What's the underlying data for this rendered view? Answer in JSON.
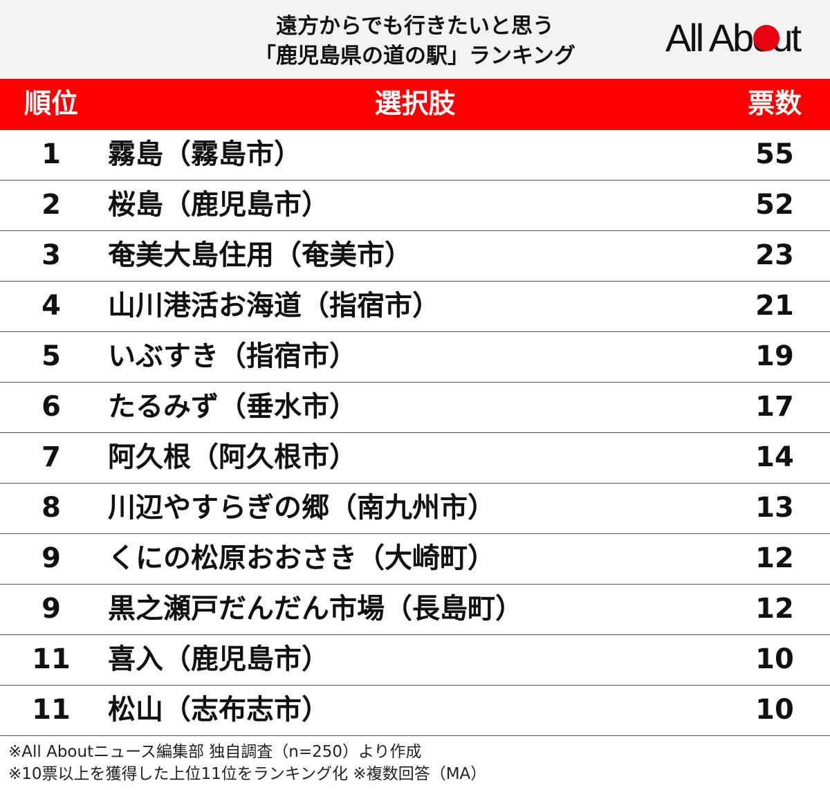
{
  "header": {
    "title_line1": "遠方からでも行きたいと思う",
    "title_line2": "「鹿児島県の道の駅」ランキング",
    "logo_text": "All About",
    "logo_dot_color": "#e60012"
  },
  "table": {
    "header_color": "#ff0000",
    "columns": {
      "rank": "順位",
      "choice": "選択肢",
      "votes": "票数"
    }
  },
  "chart_data": {
    "type": "table",
    "columns": [
      "順位",
      "選択肢",
      "票数"
    ],
    "rows": [
      {
        "rank": "1",
        "name": "霧島（霧島市）",
        "votes": 55
      },
      {
        "rank": "2",
        "name": "桜島（鹿児島市）",
        "votes": 52
      },
      {
        "rank": "3",
        "name": "奄美大島住用（奄美市）",
        "votes": 23
      },
      {
        "rank": "4",
        "name": "山川港活お海道（指宿市）",
        "votes": 21
      },
      {
        "rank": "5",
        "name": "いぶすき（指宿市）",
        "votes": 19
      },
      {
        "rank": "6",
        "name": "たるみず（垂水市）",
        "votes": 17
      },
      {
        "rank": "7",
        "name": "阿久根（阿久根市）",
        "votes": 14
      },
      {
        "rank": "8",
        "name": "川辺やすらぎの郷（南九州市）",
        "votes": 13
      },
      {
        "rank": "9",
        "name": "くにの松原おおさき（大崎町）",
        "votes": 12
      },
      {
        "rank": "9",
        "name": "黒之瀬戸だんだん市場（長島町）",
        "votes": 12
      },
      {
        "rank": "11",
        "name": "喜入（鹿児島市）",
        "votes": 10
      },
      {
        "rank": "11",
        "name": "松山（志布志市）",
        "votes": 10
      }
    ]
  },
  "footer": {
    "note1": "※All Aboutニュース編集部 独自調査（n=250）より作成",
    "note2": "※10票以上を獲得した上位11位をランキング化 ※複数回答（MA）"
  }
}
